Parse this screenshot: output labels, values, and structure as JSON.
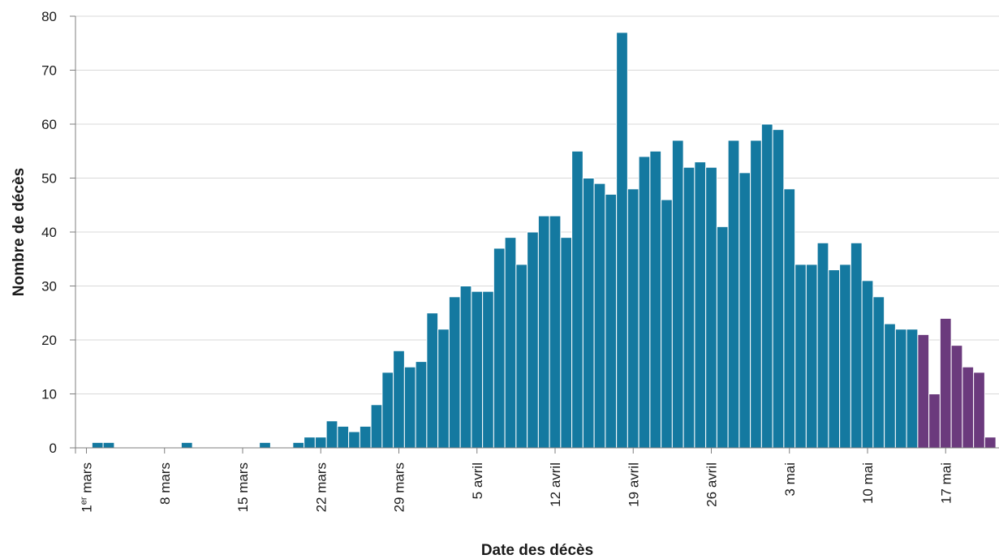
{
  "chart_data": {
    "type": "bar",
    "xlabel": "Date des décès",
    "ylabel": "Nombre de décès",
    "ylim": [
      0,
      80
    ],
    "y_ticks": [
      0,
      10,
      20,
      30,
      40,
      50,
      60,
      70,
      80
    ],
    "grid": "horizontal",
    "x_tick_labels": [
      {
        "day_index": 0,
        "label": "1er mars"
      },
      {
        "day_index": 7,
        "label": "8 mars"
      },
      {
        "day_index": 14,
        "label": "15 mars"
      },
      {
        "day_index": 21,
        "label": "22 mars"
      },
      {
        "day_index": 28,
        "label": "29 mars"
      },
      {
        "day_index": 35,
        "label": "5 avril"
      },
      {
        "day_index": 42,
        "label": "12 avril"
      },
      {
        "day_index": 49,
        "label": "19 avril"
      },
      {
        "day_index": 56,
        "label": "26 avril"
      },
      {
        "day_index": 63,
        "label": "3 mai"
      },
      {
        "day_index": 70,
        "label": "10 mai"
      },
      {
        "day_index": 77,
        "label": "17 mai"
      }
    ],
    "colors": {
      "main": "#1479A0",
      "recent": "#6B3A7D"
    },
    "series": [
      {
        "values": [
          0,
          1,
          1,
          0,
          0,
          0,
          0,
          0,
          0,
          1,
          0,
          0,
          0,
          0,
          0,
          0,
          1,
          0,
          0,
          1,
          2,
          2,
          5,
          4,
          3,
          4,
          8,
          14,
          18,
          15,
          16,
          25,
          22,
          28,
          30,
          29,
          29,
          37,
          39,
          34,
          40,
          43,
          43,
          39,
          55,
          50,
          49,
          47,
          77,
          48,
          54,
          55,
          46,
          57,
          52,
          53,
          52,
          41,
          57,
          51,
          57,
          60,
          59,
          48,
          34,
          34,
          38,
          33,
          34,
          38,
          31,
          28,
          23,
          22,
          22
        ]
      },
      {
        "values": [
          21,
          10,
          24,
          19,
          15,
          14,
          2
        ]
      }
    ]
  }
}
